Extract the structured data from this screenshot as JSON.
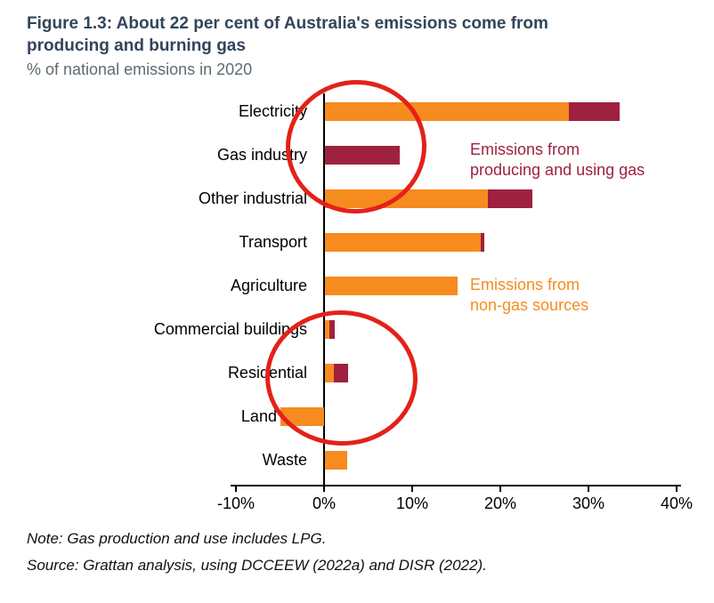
{
  "chart_data": {
    "type": "bar",
    "orientation": "horizontal",
    "stacked": true,
    "title": "Figure 1.3: About 22 per cent of Australia's emissions come from producing and burning gas",
    "subtitle": "% of national emissions in 2020",
    "categories": [
      "Electricity",
      "Gas industry",
      "Other industrial",
      "Transport",
      "Agriculture",
      "Commercial buildings",
      "Residential",
      "Land use",
      "Waste"
    ],
    "series": [
      {
        "name": "Emissions from non-gas sources",
        "color": "#F68B1F",
        "values": [
          27.7,
          0,
          18.5,
          17.7,
          15.0,
          0.5,
          1.0,
          -4.9,
          2.5
        ]
      },
      {
        "name": "Emissions from producing and using gas",
        "color": "#9E2140",
        "values": [
          5.7,
          8.5,
          5.0,
          0.4,
          0,
          0.6,
          1.6,
          0,
          0
        ]
      }
    ],
    "x_ticks": [
      "-10%",
      "0%",
      "10%",
      "20%",
      "30%",
      "40%"
    ],
    "x_tick_values": [
      -10,
      0,
      10,
      20,
      30,
      40
    ],
    "xlim": [
      -10,
      40
    ],
    "grid": false,
    "legend_position": "inside-plot-text-labels",
    "annotations": [
      "hand-drawn red circle highlighting Electricity and Gas industry gas bars",
      "hand-drawn red circle highlighting Commercial buildings, Residential and Land use bars"
    ]
  },
  "legend": {
    "gas_lines": [
      "Emissions from",
      "producing and using gas"
    ],
    "non_gas_lines": [
      "Emissions from",
      "non-gas sources"
    ]
  },
  "footer": {
    "note": "Note: Gas production and use includes LPG.",
    "source": "Source: Grattan analysis, using DCCEEW (2022a) and DISR (2022)."
  },
  "colors": {
    "non_gas_orange": "#F68B1F",
    "gas_maroon": "#9E2140",
    "title_navy": "#32455B",
    "subtitle_gray": "#5F6A72",
    "annotation_red": "#E32219",
    "axis_black": "#000000"
  }
}
